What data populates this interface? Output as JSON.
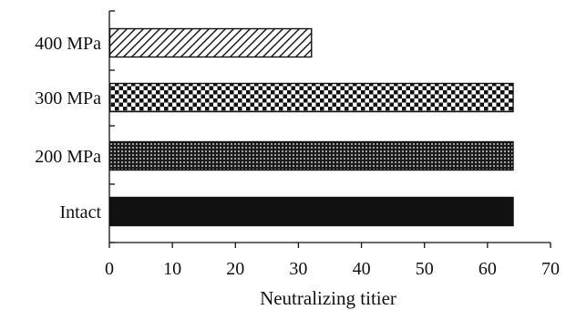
{
  "chart_data": {
    "type": "bar",
    "orientation": "horizontal",
    "title": "",
    "xlabel": "Neutralizing titier",
    "ylabel": "",
    "xlim": [
      0,
      70
    ],
    "x_ticks": [
      0,
      10,
      20,
      30,
      40,
      50,
      60,
      70
    ],
    "grid": false,
    "categories": [
      "400 MPa",
      "300 MPa",
      "200 MPa",
      "Intact"
    ],
    "values": [
      32,
      64,
      64,
      64
    ],
    "bar_patterns": [
      "diagonal-hatch",
      "checkerboard",
      "dots",
      "solid"
    ],
    "colors": {
      "ink": "#111111",
      "background": "#ffffff"
    }
  }
}
